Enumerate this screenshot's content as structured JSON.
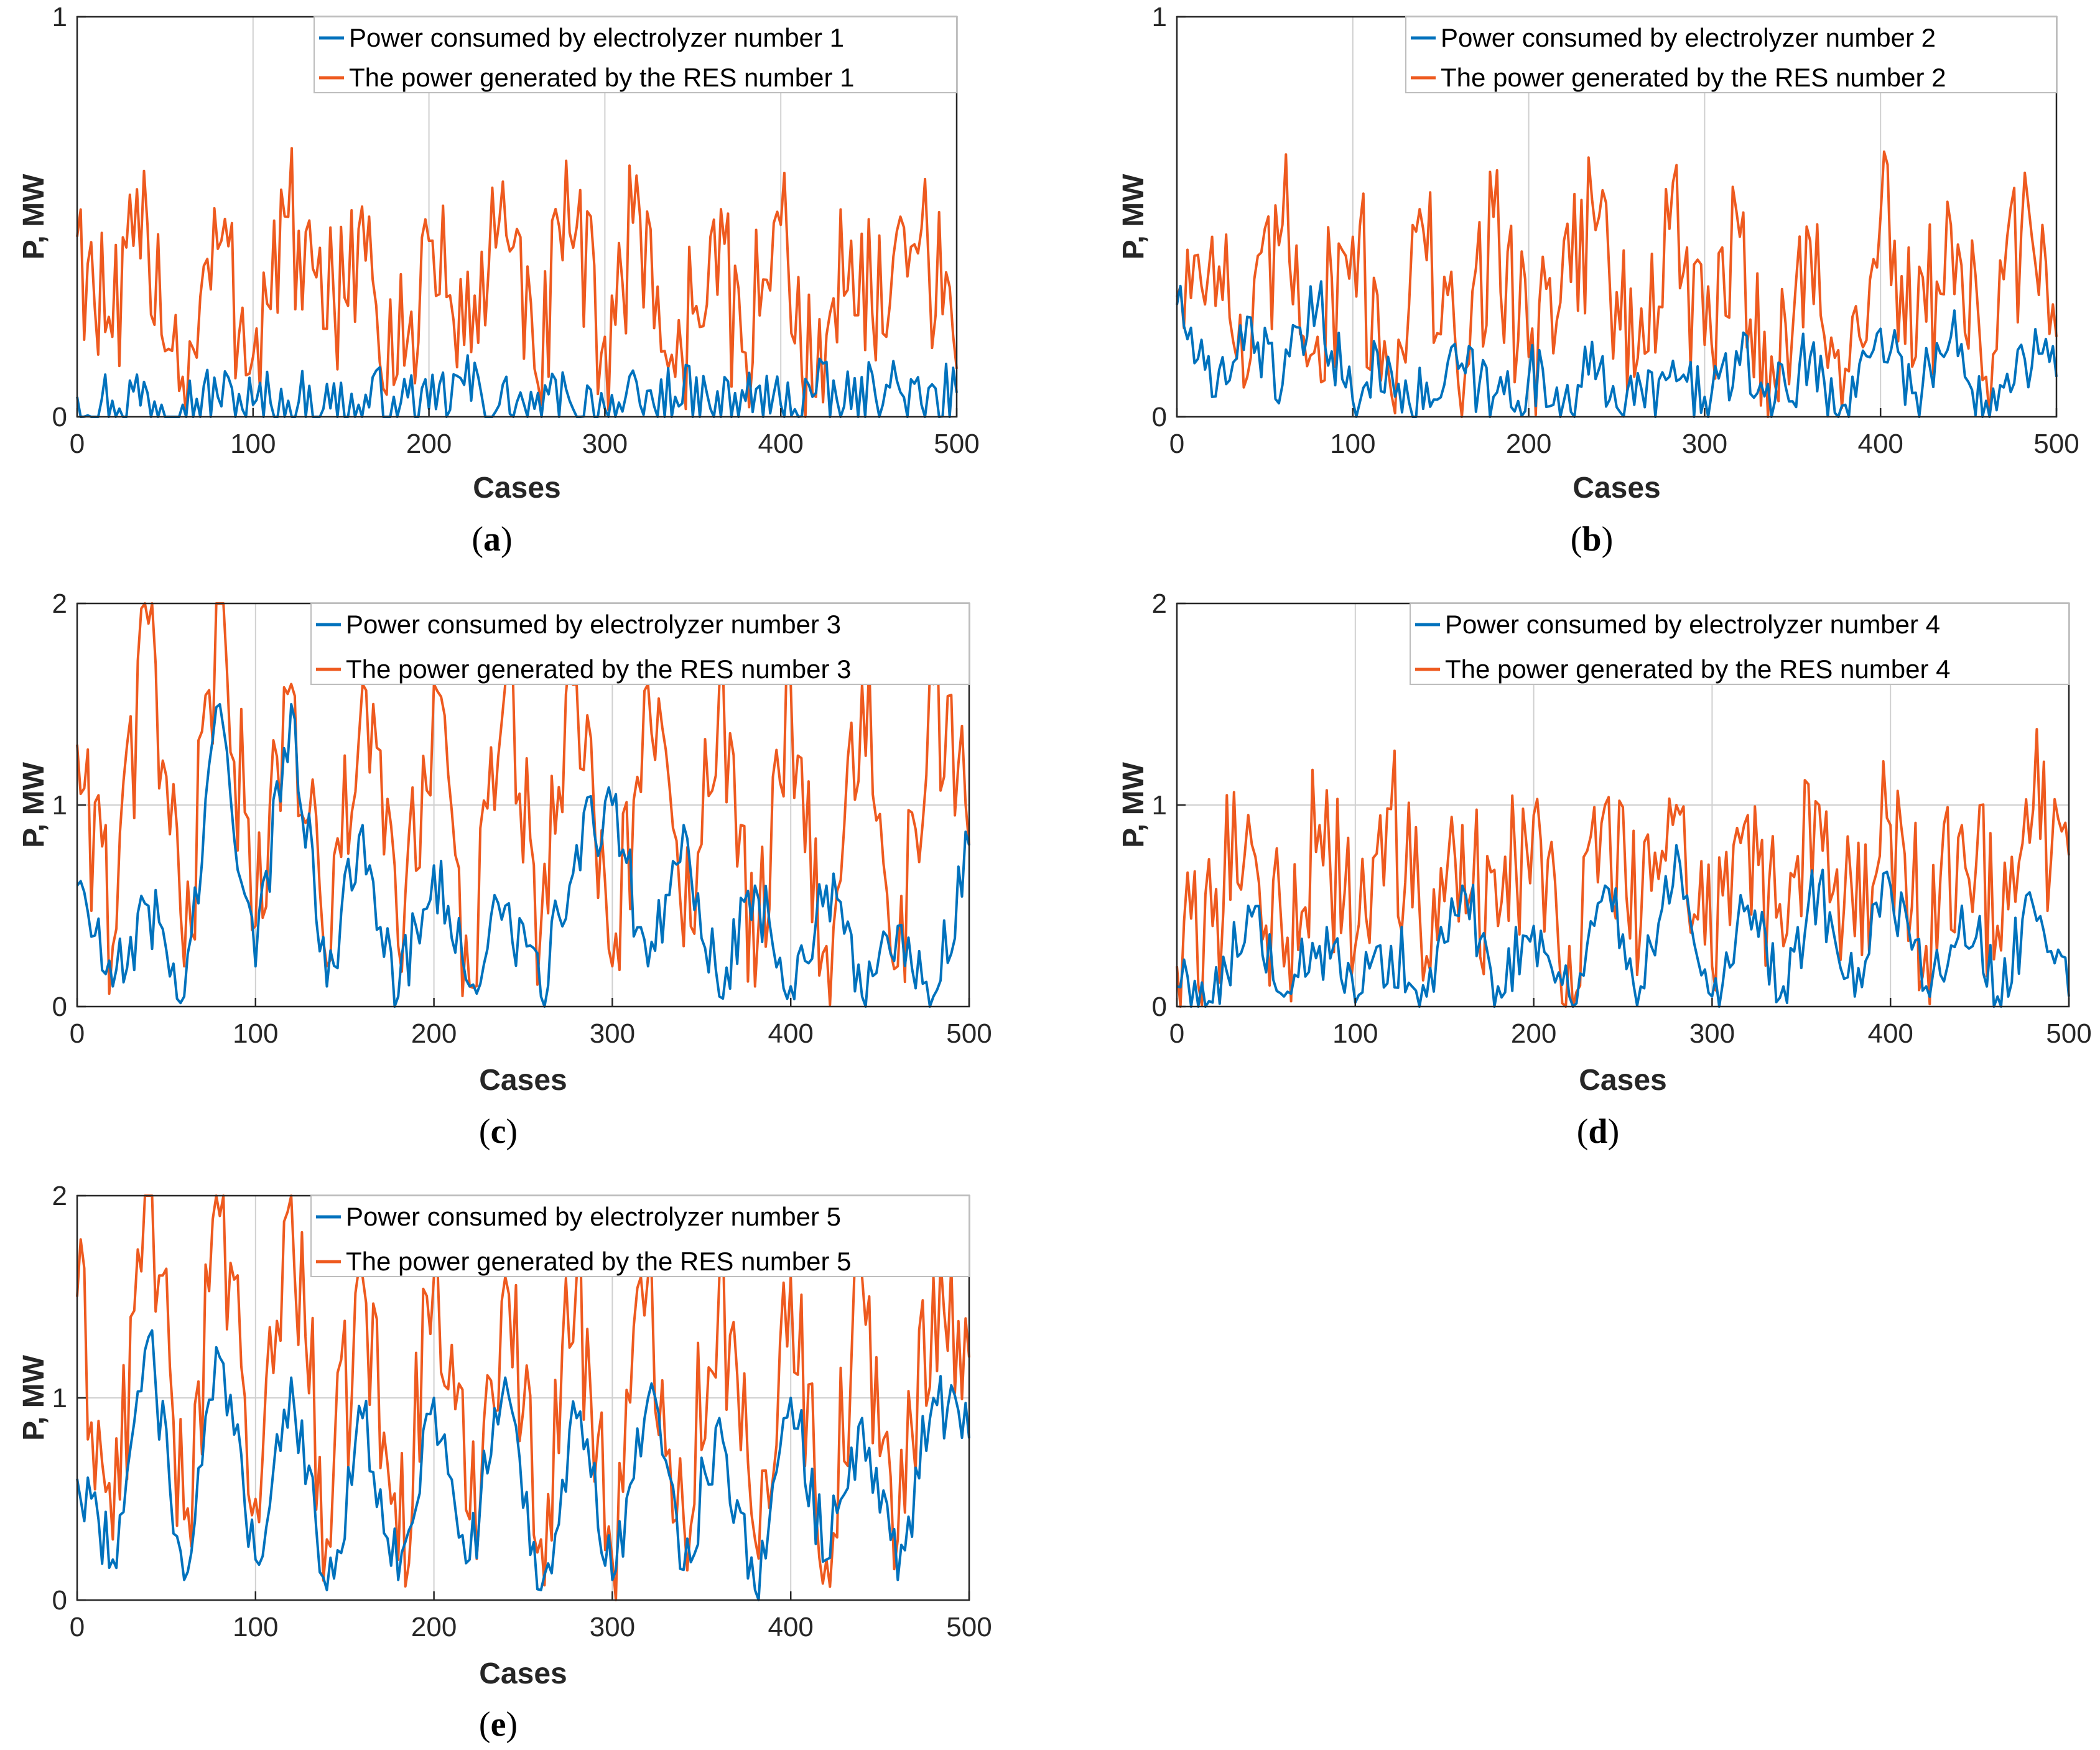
{
  "colors": {
    "electrolyzer": "#0072BD",
    "res": "#EE5A1F",
    "grid": "#d0d0d0",
    "axis": "#262626"
  },
  "chart_data": [
    {
      "type": "line",
      "panel_label": "a",
      "xlabel": "Cases",
      "ylabel": "P, MW",
      "xlim": [
        0,
        500
      ],
      "ylim": [
        0,
        1
      ],
      "xticks": [
        0,
        100,
        200,
        300,
        400,
        500
      ],
      "yticks": [
        0,
        1
      ],
      "grid": true,
      "legend_position": "top-right",
      "series": [
        {
          "name": "Power consumed by electrolyzer number 1",
          "color_key": "electrolyzer",
          "x": [
            0,
            20,
            40,
            60,
            80,
            100,
            120,
            140,
            160,
            180,
            200,
            220,
            240,
            260,
            280,
            300,
            320,
            340,
            360,
            380,
            400,
            420,
            440,
            460,
            480,
            500
          ],
          "values": [
            0.05,
            0.04,
            0.06,
            0.03,
            0.05,
            0.03,
            0.04,
            0.02,
            0.03,
            0.05,
            0.02,
            0.08,
            0.03,
            0.02,
            0.04,
            0.02,
            0.03,
            0.05,
            0.02,
            0.04,
            0.03,
            0.06,
            0.02,
            0.08,
            0.03,
            0.06
          ]
        },
        {
          "name": "The power generated by the RES number 1",
          "color_key": "res",
          "x": [
            0,
            20,
            40,
            60,
            80,
            100,
            120,
            140,
            160,
            180,
            200,
            220,
            240,
            260,
            280,
            300,
            320,
            340,
            360,
            380,
            400,
            420,
            440,
            460,
            480,
            500
          ],
          "values": [
            0.45,
            0.2,
            0.48,
            0.1,
            0.42,
            0.15,
            0.5,
            0.22,
            0.47,
            0.08,
            0.44,
            0.18,
            0.49,
            0.12,
            0.46,
            0.2,
            0.5,
            0.1,
            0.45,
            0.16,
            0.48,
            0.05,
            0.44,
            0.2,
            0.47,
            0.12
          ]
        }
      ]
    },
    {
      "type": "line",
      "panel_label": "b",
      "xlabel": "Cases",
      "ylabel": "P, MW",
      "xlim": [
        0,
        500
      ],
      "ylim": [
        0,
        1
      ],
      "xticks": [
        0,
        100,
        200,
        300,
        400,
        500
      ],
      "yticks": [
        0,
        1
      ],
      "grid": true,
      "legend_position": "top-right",
      "series": [
        {
          "name": "Power consumed by electrolyzer number 2",
          "color_key": "electrolyzer",
          "x": [
            0,
            20,
            40,
            60,
            80,
            100,
            120,
            140,
            160,
            180,
            200,
            220,
            240,
            260,
            280,
            300,
            320,
            340,
            360,
            380,
            400,
            420,
            440,
            460,
            480,
            500
          ],
          "values": [
            0.28,
            0.05,
            0.25,
            0.08,
            0.28,
            0.04,
            0.15,
            0.02,
            0.12,
            0.05,
            0.1,
            0.04,
            0.12,
            0.03,
            0.1,
            0.05,
            0.13,
            0.04,
            0.15,
            0.03,
            0.22,
            0.06,
            0.2,
            0.04,
            0.18,
            0.1
          ]
        },
        {
          "name": "The power generated by the RES number 2",
          "color_key": "res",
          "x": [
            0,
            20,
            40,
            60,
            80,
            100,
            120,
            140,
            160,
            180,
            200,
            220,
            240,
            260,
            280,
            300,
            320,
            340,
            360,
            380,
            400,
            420,
            440,
            460,
            480,
            500
          ],
          "values": [
            0.3,
            0.45,
            0.1,
            0.48,
            0.2,
            0.45,
            0.12,
            0.47,
            0.08,
            0.5,
            0.15,
            0.44,
            0.5,
            0.1,
            0.47,
            0.18,
            0.45,
            0.08,
            0.44,
            0.12,
            0.5,
            0.15,
            0.48,
            0.1,
            0.46,
            0.2
          ]
        }
      ]
    },
    {
      "type": "line",
      "panel_label": "c",
      "xlabel": "Cases",
      "ylabel": "P, MW",
      "xlim": [
        0,
        500
      ],
      "ylim": [
        0,
        2
      ],
      "xticks": [
        0,
        100,
        200,
        300,
        400,
        500
      ],
      "yticks": [
        0,
        1,
        2
      ],
      "grid": true,
      "legend_position": "top-right",
      "series": [
        {
          "name": "Power consumed by electrolyzer number 3",
          "color_key": "electrolyzer",
          "x": [
            0,
            20,
            40,
            60,
            80,
            100,
            120,
            140,
            160,
            180,
            200,
            220,
            240,
            260,
            280,
            300,
            320,
            340,
            360,
            380,
            400,
            420,
            440,
            460,
            480,
            500
          ],
          "values": [
            0.6,
            0.1,
            0.5,
            0.05,
            1.5,
            0.2,
            1.5,
            0.1,
            0.9,
            0.05,
            0.7,
            0.1,
            0.5,
            0.05,
            0.8,
            1.0,
            0.2,
            0.9,
            0.05,
            0.6,
            0.1,
            0.6,
            0.05,
            0.4,
            0.05,
            0.8
          ]
        },
        {
          "name": "The power generated by the RES number 3",
          "color_key": "res",
          "x": [
            0,
            20,
            40,
            60,
            80,
            100,
            120,
            140,
            160,
            180,
            200,
            220,
            240,
            260,
            280,
            300,
            320,
            340,
            360,
            380,
            400,
            420,
            440,
            460,
            480,
            500
          ],
          "values": [
            1.3,
            0.3,
            1.9,
            0.2,
            2.0,
            0.4,
            1.6,
            0.2,
            1.6,
            0.3,
            1.6,
            0.1,
            1.6,
            0.4,
            1.6,
            0.2,
            1.6,
            0.3,
            1.6,
            0.1,
            1.6,
            0.3,
            1.6,
            0.2,
            1.6,
            0.8
          ]
        }
      ]
    },
    {
      "type": "line",
      "panel_label": "d",
      "xlabel": "Cases",
      "ylabel": "P, MW",
      "xlim": [
        0,
        500
      ],
      "ylim": [
        0,
        2
      ],
      "xticks": [
        0,
        100,
        200,
        300,
        400,
        500
      ],
      "yticks": [
        0,
        1,
        2
      ],
      "grid": true,
      "legend_position": "top-right",
      "series": [
        {
          "name": "Power consumed by electrolyzer number 4",
          "color_key": "electrolyzer",
          "x": [
            0,
            20,
            40,
            60,
            80,
            100,
            120,
            140,
            160,
            180,
            200,
            220,
            240,
            260,
            280,
            300,
            320,
            340,
            360,
            380,
            400,
            420,
            440,
            460,
            480,
            500
          ],
          "values": [
            0.1,
            0.02,
            0.5,
            0.05,
            0.3,
            0.02,
            0.3,
            0.05,
            0.6,
            0.1,
            0.4,
            0.05,
            0.6,
            0.1,
            0.8,
            0.05,
            0.5,
            0.1,
            0.6,
            0.05,
            0.6,
            0.1,
            0.5,
            0.05,
            0.5,
            0.05
          ]
        },
        {
          "name": "The power generated by the RES number 4",
          "color_key": "res",
          "x": [
            0,
            20,
            40,
            60,
            80,
            100,
            120,
            140,
            160,
            180,
            200,
            220,
            240,
            260,
            280,
            300,
            320,
            340,
            360,
            380,
            400,
            420,
            440,
            460,
            480,
            500
          ],
          "values": [
            0.2,
            0.4,
            0.95,
            0.2,
            0.9,
            0.3,
            0.98,
            0.25,
            0.9,
            0.4,
            0.95,
            0.3,
            1.0,
            0.4,
            1.0,
            0.2,
            0.95,
            0.3,
            1.0,
            0.35,
            0.9,
            0.3,
            0.9,
            0.4,
            0.98,
            0.75
          ]
        }
      ]
    },
    {
      "type": "line",
      "panel_label": "e",
      "xlabel": "Cases",
      "ylabel": "P, MW",
      "xlim": [
        0,
        500
      ],
      "ylim": [
        0,
        2
      ],
      "xticks": [
        0,
        100,
        200,
        300,
        400,
        500
      ],
      "yticks": [
        0,
        1,
        2
      ],
      "grid": true,
      "legend_position": "top-right",
      "series": [
        {
          "name": "Power consumed by electrolyzer number 5",
          "color_key": "electrolyzer",
          "x": [
            0,
            20,
            40,
            60,
            80,
            100,
            120,
            140,
            160,
            180,
            200,
            220,
            240,
            260,
            280,
            300,
            320,
            340,
            360,
            380,
            400,
            420,
            440,
            460,
            480,
            500
          ],
          "values": [
            0.6,
            0.2,
            1.3,
            0.1,
            1.2,
            0.2,
            1.1,
            0.05,
            0.9,
            0.1,
            1.0,
            0.2,
            1.1,
            0.05,
            0.9,
            0.1,
            1.0,
            0.15,
            0.9,
            0.05,
            1.0,
            0.2,
            0.9,
            0.1,
            1.0,
            0.8
          ]
        },
        {
          "name": "The power generated by the RES number 5",
          "color_key": "res",
          "x": [
            0,
            20,
            40,
            60,
            80,
            100,
            120,
            140,
            160,
            180,
            200,
            220,
            240,
            260,
            280,
            300,
            320,
            340,
            360,
            380,
            400,
            420,
            440,
            460,
            480,
            500
          ],
          "values": [
            1.5,
            0.3,
            2.0,
            0.4,
            1.9,
            0.5,
            2.0,
            0.3,
            1.6,
            0.2,
            1.6,
            0.4,
            1.6,
            0.3,
            1.6,
            0.2,
            1.6,
            0.4,
            1.6,
            0.3,
            1.6,
            0.2,
            1.6,
            0.3,
            1.6,
            1.2
          ]
        }
      ]
    }
  ]
}
